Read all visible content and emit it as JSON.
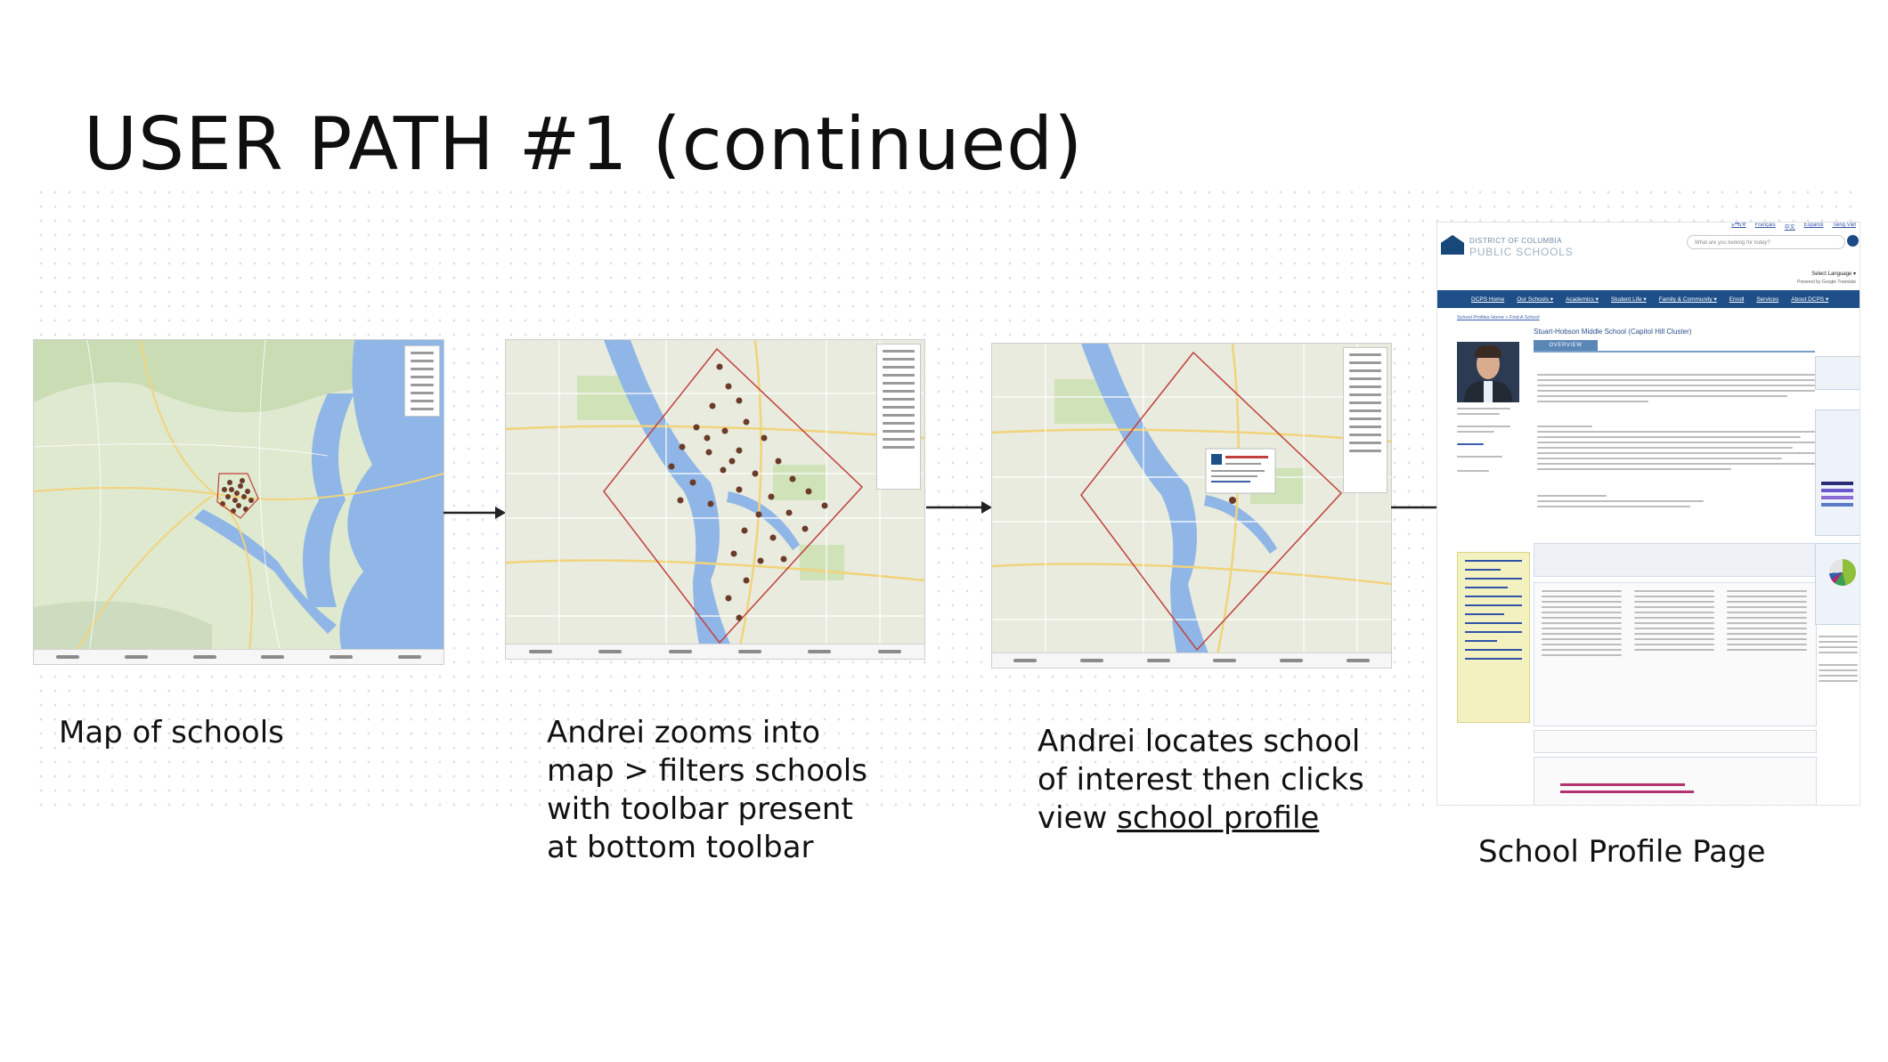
{
  "slide": {
    "title": "USER PATH #1 (continued)"
  },
  "steps": [
    {
      "caption": "Map of schools"
    },
    {
      "caption": "Andrei zooms into\nmap > filters schools\nwith toolbar present\nat bottom toolbar"
    },
    {
      "caption_prefix": "Andrei locates school\nof interest then clicks\nview ",
      "caption_link": "school profile"
    },
    {
      "caption": "School Profile Page"
    }
  ],
  "profile_page": {
    "org_line1": "DISTRICT OF COLUMBIA",
    "org_line2": "PUBLIC SCHOOLS",
    "languages": [
      "አማርኛ",
      "Français",
      "中文",
      "Español",
      "Tiếng Việt"
    ],
    "search_placeholder": "What are you looking for today?",
    "select_language": "Select Language ▾",
    "powered_by": "Powered by Google Translate",
    "nav": [
      "DCPS Home",
      "Our Schools ▾",
      "Academics ▾",
      "Student Life ▾",
      "Family & Community ▾",
      "Enroll",
      "Services",
      "About DCPS ▾"
    ],
    "breadcrumb": "School Profiles Home » Find A School",
    "school_name": "Stuart-Hobson Middle School (Capitol Hill Cluster)",
    "tab": "OVERVIEW"
  },
  "colors": {
    "dcps_blue": "#1e4f88",
    "map_water": "#8fb6e6",
    "map_land": "#dfe9cf",
    "boundary": "#c2403c"
  }
}
